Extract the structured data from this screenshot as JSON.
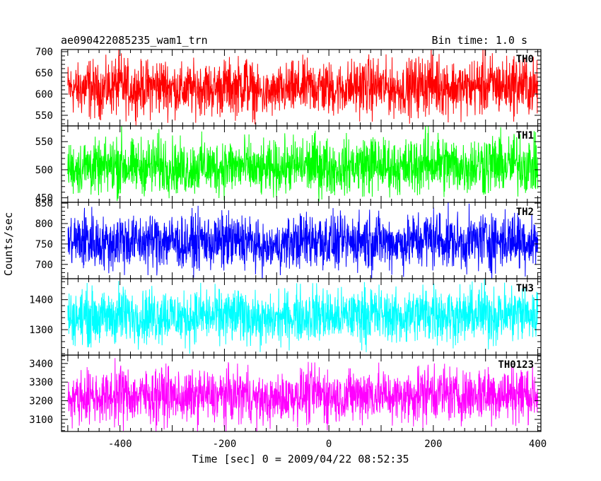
{
  "chart_data": {
    "type": "line",
    "title": "ae090422085235_wam1_trn",
    "bin_time_label": "Bin time: 1.0 s",
    "xlabel": "Time [sec] 0 = 2009/04/22 08:52:35",
    "ylabel": "Counts/sec",
    "xlim": [
      -512,
      406
    ],
    "xticks": [
      -400,
      -200,
      0,
      200,
      400
    ],
    "line_width": 1,
    "panels": [
      {
        "name": "TH0",
        "color": "#ff0000",
        "ylim": [
          525,
          705
        ],
        "yticks": [
          550,
          600,
          650,
          700
        ],
        "x": [
          -500,
          -480,
          -460,
          -440,
          -420,
          -400,
          -380,
          -360,
          -340,
          -320,
          -300,
          -280,
          -260,
          -240,
          -220,
          -200,
          -180,
          -160,
          -140,
          -120,
          -100,
          -80,
          -60,
          -40,
          -20,
          0,
          20,
          40,
          60,
          80,
          100,
          120,
          140,
          160,
          180,
          200,
          220,
          240,
          260,
          280,
          300,
          320,
          340,
          360,
          380,
          400
        ],
        "mean": [
          615,
          612,
          618,
          610,
          616,
          620,
          612,
          614,
          618,
          622,
          615,
          610,
          613,
          617,
          612,
          618,
          616,
          620,
          608,
          600,
          605,
          610,
          612,
          616,
          618,
          614,
          612,
          615,
          618,
          620,
          616,
          614,
          612,
          618,
          622,
          625,
          620,
          616,
          614,
          618,
          622,
          620,
          618,
          624,
          618,
          614
        ],
        "upper": [
          675,
          670,
          690,
          665,
          680,
          700,
          672,
          676,
          684,
          690,
          680,
          668,
          674,
          682,
          670,
          686,
          678,
          705,
          660,
          650,
          662,
          672,
          676,
          682,
          688,
          676,
          672,
          680,
          686,
          690,
          682,
          676,
          670,
          686,
          694,
          700,
          690,
          682,
          676,
          690,
          700,
          692,
          686,
          700,
          690,
          675
        ],
        "lower": [
          552,
          548,
          540,
          545,
          550,
          545,
          548,
          552,
          545,
          548,
          550,
          546,
          548,
          552,
          545,
          550,
          548,
          552,
          542,
          540,
          544,
          546,
          550,
          552,
          548,
          545,
          548,
          552,
          550,
          545,
          552,
          550,
          548,
          546,
          550,
          552,
          548,
          550,
          548,
          552,
          545,
          548,
          552,
          550,
          548,
          552
        ]
      },
      {
        "name": "TH1",
        "color": "#00ff00",
        "ylim": [
          442,
          578
        ],
        "yticks": [
          450,
          500,
          550
        ],
        "x": [
          -500,
          -480,
          -460,
          -440,
          -420,
          -400,
          -380,
          -360,
          -340,
          -320,
          -300,
          -280,
          -260,
          -240,
          -220,
          -200,
          -180,
          -160,
          -140,
          -120,
          -100,
          -80,
          -60,
          -40,
          -20,
          0,
          20,
          40,
          60,
          80,
          100,
          120,
          140,
          160,
          180,
          200,
          220,
          240,
          260,
          280,
          300,
          320,
          340,
          360,
          380,
          400
        ],
        "mean": [
          505,
          502,
          508,
          500,
          506,
          510,
          504,
          502,
          506,
          508,
          504,
          500,
          503,
          507,
          502,
          506,
          504,
          505,
          498,
          500,
          502,
          504,
          506,
          505,
          508,
          504,
          502,
          505,
          508,
          510,
          506,
          504,
          502,
          508,
          510,
          512,
          508,
          506,
          504,
          506,
          510,
          508,
          506,
          510,
          506,
          504
        ],
        "upper": [
          550,
          548,
          560,
          545,
          555,
          578,
          552,
          556,
          560,
          566,
          556,
          548,
          552,
          558,
          550,
          562,
          556,
          560,
          544,
          546,
          550,
          556,
          558,
          562,
          566,
          556,
          550,
          558,
          562,
          568,
          560,
          554,
          550,
          562,
          568,
          575,
          566,
          560,
          556,
          562,
          570,
          566,
          560,
          572,
          566,
          550
        ],
        "lower": [
          460,
          455,
          452,
          458,
          455,
          450,
          456,
          460,
          452,
          455,
          458,
          452,
          456,
          460,
          452,
          455,
          456,
          460,
          452,
          450,
          455,
          458,
          460,
          456,
          452,
          455,
          456,
          460,
          458,
          452,
          460,
          458,
          456,
          452,
          456,
          460,
          455,
          458,
          456,
          460,
          452,
          455,
          460,
          458,
          456,
          460
        ]
      },
      {
        "name": "TH2",
        "color": "#0000ff",
        "ylim": [
          665,
          852
        ],
        "yticks": [
          700,
          750,
          800,
          850
        ],
        "x": [
          -500,
          -480,
          -460,
          -440,
          -420,
          -400,
          -380,
          -360,
          -340,
          -320,
          -300,
          -280,
          -260,
          -240,
          -220,
          -200,
          -180,
          -160,
          -140,
          -120,
          -100,
          -80,
          -60,
          -40,
          -20,
          0,
          20,
          40,
          60,
          80,
          100,
          120,
          140,
          160,
          180,
          200,
          220,
          240,
          260,
          280,
          300,
          320,
          340,
          360,
          380,
          400
        ],
        "mean": [
          755,
          758,
          760,
          754,
          752,
          762,
          758,
          756,
          760,
          764,
          758,
          754,
          756,
          760,
          755,
          758,
          756,
          760,
          750,
          740,
          745,
          752,
          756,
          760,
          764,
          758,
          752,
          756,
          760,
          762,
          758,
          754,
          752,
          758,
          762,
          765,
          760,
          756,
          754,
          758,
          762,
          760,
          756,
          762,
          758,
          755
        ],
        "upper": [
          820,
          830,
          850,
          815,
          812,
          840,
          822,
          818,
          826,
          834,
          824,
          814,
          820,
          828,
          815,
          830,
          822,
          830,
          805,
          790,
          800,
          815,
          822,
          830,
          838,
          826,
          815,
          822,
          830,
          836,
          826,
          818,
          812,
          826,
          834,
          842,
          832,
          822,
          818,
          828,
          838,
          832,
          824,
          840,
          830,
          815
        ],
        "lower": [
          690,
          685,
          680,
          688,
          684,
          676,
          686,
          690,
          680,
          684,
          688,
          680,
          686,
          690,
          680,
          684,
          686,
          690,
          680,
          676,
          684,
          688,
          690,
          686,
          680,
          684,
          686,
          690,
          688,
          680,
          690,
          688,
          686,
          680,
          686,
          690,
          684,
          688,
          686,
          690,
          680,
          684,
          690,
          688,
          686,
          690
        ]
      },
      {
        "name": "TH3",
        "color": "#00ffff",
        "ylim": [
          1215,
          1470
        ],
        "yticks": [
          1300,
          1400
        ],
        "x": [
          -500,
          -480,
          -460,
          -440,
          -420,
          -400,
          -380,
          -360,
          -340,
          -320,
          -300,
          -280,
          -260,
          -240,
          -220,
          -200,
          -180,
          -160,
          -140,
          -120,
          -100,
          -80,
          -60,
          -40,
          -20,
          0,
          20,
          40,
          60,
          80,
          100,
          120,
          140,
          160,
          180,
          200,
          220,
          240,
          260,
          280,
          300,
          320,
          340,
          360,
          380,
          400
        ],
        "mean": [
          1345,
          1342,
          1350,
          1338,
          1344,
          1352,
          1346,
          1344,
          1348,
          1354,
          1346,
          1340,
          1344,
          1350,
          1342,
          1348,
          1346,
          1350,
          1338,
          1330,
          1336,
          1342,
          1346,
          1350,
          1354,
          1346,
          1340,
          1346,
          1350,
          1354,
          1348,
          1344,
          1340,
          1348,
          1354,
          1358,
          1352,
          1346,
          1344,
          1350,
          1356,
          1352,
          1348,
          1356,
          1350,
          1346
        ],
        "upper": [
          1430,
          1425,
          1445,
          1420,
          1430,
          1460,
          1432,
          1436,
          1442,
          1452,
          1438,
          1424,
          1432,
          1444,
          1426,
          1446,
          1436,
          1450,
          1416,
          1405,
          1420,
          1430,
          1438,
          1446,
          1454,
          1440,
          1426,
          1438,
          1446,
          1454,
          1444,
          1434,
          1426,
          1444,
          1454,
          1465,
          1450,
          1440,
          1434,
          1446,
          1458,
          1450,
          1442,
          1462,
          1450,
          1430
        ],
        "lower": [
          1260,
          1252,
          1248,
          1256,
          1250,
          1240,
          1252,
          1258,
          1246,
          1250,
          1256,
          1246,
          1252,
          1258,
          1246,
          1250,
          1252,
          1258,
          1246,
          1240,
          1250,
          1256,
          1258,
          1252,
          1246,
          1250,
          1252,
          1258,
          1256,
          1246,
          1258,
          1256,
          1252,
          1246,
          1252,
          1258,
          1250,
          1256,
          1252,
          1258,
          1246,
          1250,
          1258,
          1256,
          1252,
          1258
        ]
      },
      {
        "name": "TH0123",
        "color": "#ff00ff",
        "ylim": [
          3035,
          3445
        ],
        "yticks": [
          3100,
          3200,
          3300,
          3400
        ],
        "x": [
          -500,
          -480,
          -460,
          -440,
          -420,
          -400,
          -380,
          -360,
          -340,
          -320,
          -300,
          -280,
          -260,
          -240,
          -220,
          -200,
          -180,
          -160,
          -140,
          -120,
          -100,
          -80,
          -60,
          -40,
          -20,
          0,
          20,
          40,
          60,
          80,
          100,
          120,
          140,
          160,
          180,
          200,
          220,
          240,
          260,
          280,
          300,
          320,
          340,
          360,
          380,
          400
        ],
        "mean": [
          3225,
          3220,
          3232,
          3215,
          3224,
          3238,
          3228,
          3224,
          3230,
          3238,
          3226,
          3216,
          3222,
          3232,
          3218,
          3230,
          3226,
          3234,
          3212,
          3200,
          3210,
          3220,
          3228,
          3234,
          3240,
          3228,
          3218,
          3226,
          3234,
          3240,
          3232,
          3224,
          3218,
          3232,
          3240,
          3246,
          3238,
          3228,
          3224,
          3234,
          3244,
          3238,
          3230,
          3244,
          3236,
          3226
        ],
        "upper": [
          3350,
          3345,
          3380,
          3340,
          3356,
          3420,
          3360,
          3366,
          3376,
          3392,
          3370,
          3344,
          3358,
          3378,
          3348,
          3384,
          3364,
          3392,
          3330,
          3310,
          3336,
          3356,
          3370,
          3384,
          3400,
          3376,
          3350,
          3370,
          3386,
          3400,
          3382,
          3362,
          3350,
          3382,
          3400,
          3425,
          3392,
          3376,
          3364,
          3386,
          3410,
          3392,
          3376,
          3418,
          3392,
          3350
        ],
        "lower": [
          3090,
          3080,
          3070,
          3084,
          3076,
          3062,
          3080,
          3090,
          3072,
          3078,
          3086,
          3072,
          3080,
          3090,
          3072,
          3078,
          3080,
          3090,
          3072,
          3062,
          3076,
          3086,
          3090,
          3080,
          3072,
          3078,
          3080,
          3090,
          3086,
          3072,
          3090,
          3086,
          3080,
          3072,
          3080,
          3090,
          3078,
          3086,
          3080,
          3090,
          3072,
          3078,
          3090,
          3086,
          3080,
          3090
        ]
      }
    ]
  }
}
